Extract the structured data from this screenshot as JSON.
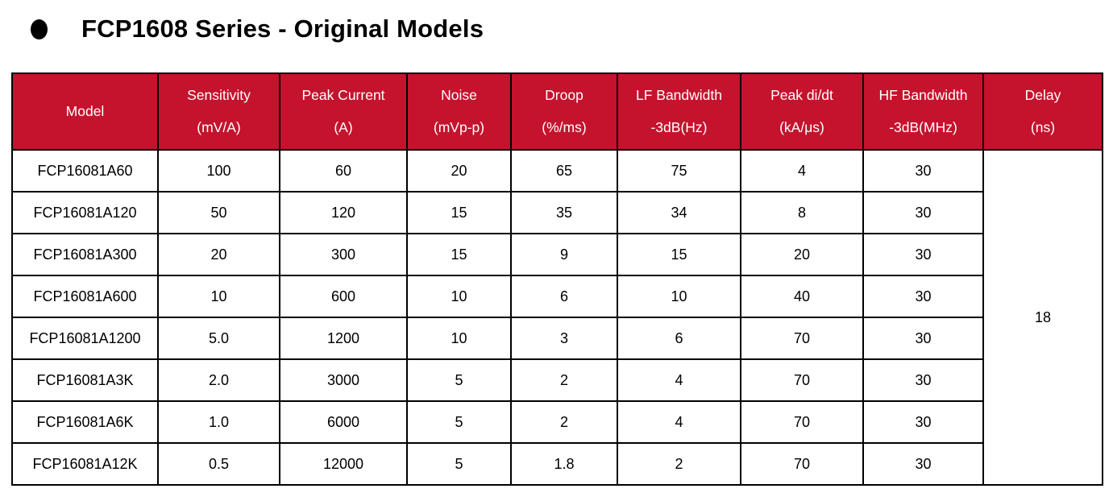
{
  "title": {
    "bullet_icon": "circle",
    "text": "FCP1608 Series - Original Models"
  },
  "table": {
    "headers": [
      {
        "label": "Model",
        "unit": ""
      },
      {
        "label": "Sensitivity",
        "unit": "(mV/A)"
      },
      {
        "label": "Peak Current",
        "unit": "(A)"
      },
      {
        "label": "Noise",
        "unit": "(mVp-p)"
      },
      {
        "label": "Droop",
        "unit": "(%/ms)"
      },
      {
        "label": "LF Bandwidth",
        "unit": "-3dB(Hz)"
      },
      {
        "label": "Peak di/dt",
        "unit": "(kA/μs)"
      },
      {
        "label": "HF Bandwidth",
        "unit": "-3dB(MHz)"
      },
      {
        "label": "Delay",
        "unit": "(ns)"
      }
    ],
    "rows": [
      [
        "FCP16081A60",
        "100",
        "60",
        "20",
        "65",
        "75",
        "4",
        "30"
      ],
      [
        "FCP16081A120",
        "50",
        "120",
        "15",
        "35",
        "34",
        "8",
        "30"
      ],
      [
        "FCP16081A300",
        "20",
        "300",
        "15",
        "9",
        "15",
        "20",
        "30"
      ],
      [
        "FCP16081A600",
        "10",
        "600",
        "10",
        "6",
        "10",
        "40",
        "30"
      ],
      [
        "FCP16081A1200",
        "5.0",
        "1200",
        "10",
        "3",
        "6",
        "70",
        "30"
      ],
      [
        "FCP16081A3K",
        "2.0",
        "3000",
        "5",
        "2",
        "4",
        "70",
        "30"
      ],
      [
        "FCP16081A6K",
        "1.0",
        "6000",
        "5",
        "2",
        "4",
        "70",
        "30"
      ],
      [
        "FCP16081A12K",
        "0.5",
        "12000",
        "5",
        "1.8",
        "2",
        "70",
        "30"
      ]
    ],
    "delay_value": "18"
  },
  "colors": {
    "header_bg": "#C5132D",
    "header_text": "#FFFFFF",
    "border": "#000000",
    "body_bg": "#FFFFFF"
  }
}
